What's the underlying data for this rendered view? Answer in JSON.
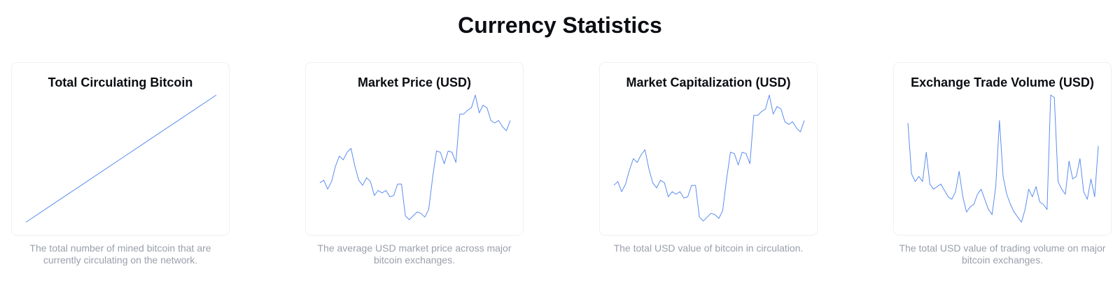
{
  "page": {
    "title": "Currency Statistics"
  },
  "colors": {
    "line": "#5b8def",
    "title": "#0b0d12",
    "description": "#9a9fab",
    "card_border": "#eff0f3"
  },
  "cards": [
    {
      "title": "Total Circulating Bitcoin",
      "description": "The total number of mined bitcoin that are currently circulating on the network."
    },
    {
      "title": "Market Price (USD)",
      "description": "The average USD market price across major bitcoin exchanges."
    },
    {
      "title": "Market Capitalization (USD)",
      "description": "The total USD value of bitcoin in circulation."
    },
    {
      "title": "Exchange Trade Volume (USD)",
      "description": "The total USD value of trading volume on major bitcoin exchanges."
    }
  ],
  "chart_data": [
    {
      "type": "line",
      "title": "Total Circulating Bitcoin",
      "ylim": [
        0,
        100
      ],
      "series": [
        {
          "values": [
            0,
            10,
            20,
            30,
            40,
            50,
            60,
            70,
            80,
            90,
            100
          ]
        }
      ]
    },
    {
      "type": "line",
      "title": "Market Price (USD)",
      "ylim": [
        0,
        100
      ],
      "series": [
        {
          "values": [
            31,
            33,
            26,
            32,
            44,
            52,
            49,
            55,
            58,
            44,
            33,
            29,
            35,
            32,
            21,
            25,
            23,
            25,
            20,
            21,
            30,
            30,
            5,
            2,
            5,
            8,
            7,
            4,
            10,
            35,
            56,
            55,
            46,
            56,
            55,
            47,
            85,
            85,
            88,
            90,
            100,
            86,
            92,
            90,
            80,
            78,
            80,
            75,
            72,
            80
          ]
        }
      ]
    },
    {
      "type": "line",
      "title": "Market Capitalization (USD)",
      "ylim": [
        0,
        100
      ],
      "series": [
        {
          "values": [
            29,
            32,
            24,
            30,
            41,
            50,
            47,
            53,
            57,
            42,
            31,
            27,
            33,
            31,
            20,
            24,
            22,
            24,
            19,
            20,
            29,
            29,
            4,
            1,
            4,
            7,
            6,
            3,
            9,
            34,
            55,
            54,
            45,
            55,
            54,
            46,
            84,
            84,
            87,
            89,
            100,
            85,
            91,
            89,
            79,
            77,
            79,
            74,
            71,
            80
          ]
        }
      ]
    },
    {
      "type": "line",
      "title": "Exchange Trade Volume (USD)",
      "ylim": [
        0,
        100
      ],
      "series": [
        {
          "values": [
            78,
            38,
            32,
            36,
            32,
            55,
            30,
            26,
            28,
            30,
            25,
            20,
            18,
            24,
            40,
            20,
            8,
            12,
            14,
            22,
            26,
            18,
            10,
            6,
            28,
            80,
            36,
            22,
            14,
            8,
            4,
            0,
            10,
            26,
            20,
            28,
            16,
            14,
            10,
            100,
            98,
            32,
            26,
            22,
            48,
            34,
            36,
            50,
            24,
            18,
            34,
            20,
            60
          ]
        }
      ]
    }
  ]
}
